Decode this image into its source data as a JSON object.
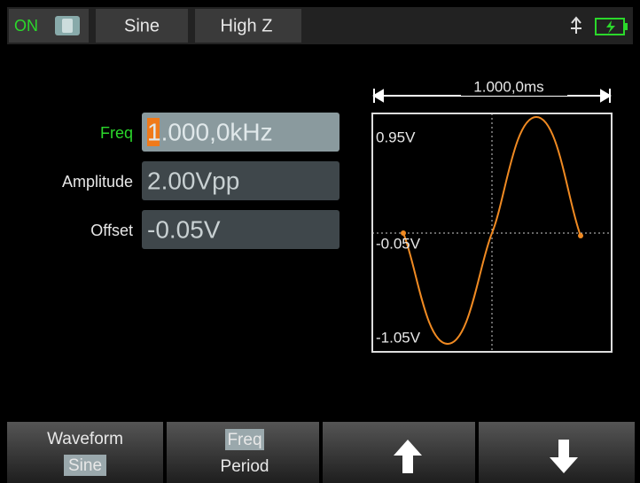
{
  "status_bar": {
    "output": "ON",
    "waveform": "Sine",
    "load": "High Z"
  },
  "parameters": [
    {
      "label": "Freq",
      "value": "1.000,0kHz"
    },
    {
      "label": "Amplitude",
      "value": "2.00Vpp"
    },
    {
      "label": "Offset",
      "value": "-0.05V"
    }
  ],
  "preview": {
    "time_span": "1.000,0ms",
    "max_label": "0.95V",
    "mid_label": "-0.05V",
    "min_label": "-1.05V"
  },
  "softkeys": [
    {
      "label": "Waveform",
      "option": "Sine"
    },
    {
      "label": "Freq",
      "option": "Period"
    }
  ]
}
